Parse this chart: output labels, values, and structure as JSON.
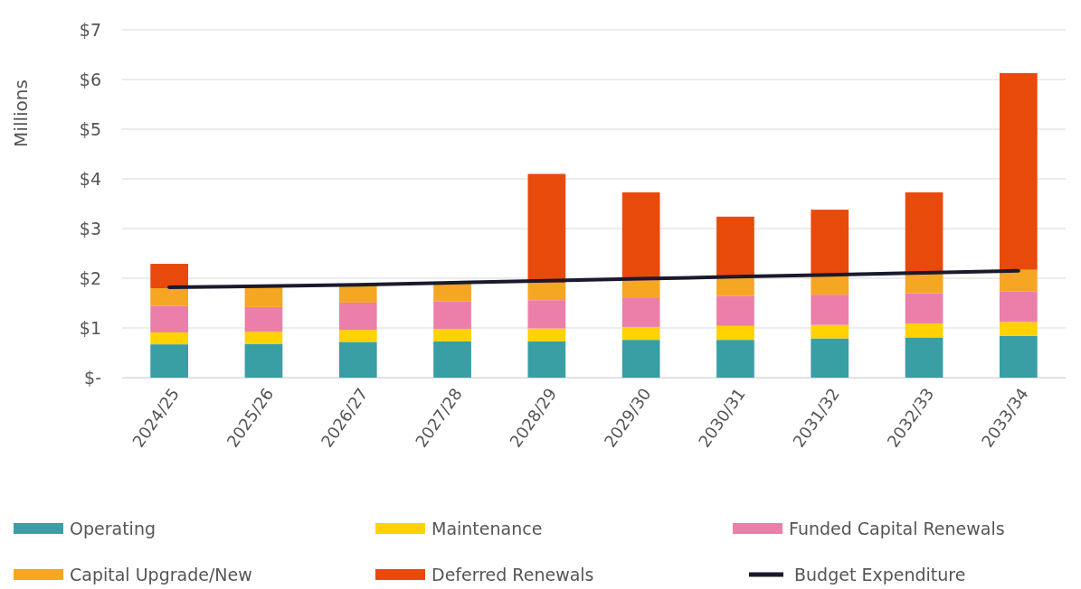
{
  "chart_data": {
    "type": "bar",
    "stacked": true,
    "ylabel": "Millions",
    "categories": [
      "2024/25",
      "2025/26",
      "2026/27",
      "2027/28",
      "2028/29",
      "2029/30",
      "2030/31",
      "2031/32",
      "2032/33",
      "2033/34"
    ],
    "ylim": [
      0,
      7
    ],
    "yticks": [
      {
        "value": 0,
        "label": "$-"
      },
      {
        "value": 1,
        "label": "$1"
      },
      {
        "value": 2,
        "label": "$2"
      },
      {
        "value": 3,
        "label": "$3"
      },
      {
        "value": 4,
        "label": "$4"
      },
      {
        "value": 5,
        "label": "$5"
      },
      {
        "value": 6,
        "label": "$6"
      },
      {
        "value": 7,
        "label": "$7"
      }
    ],
    "grid": "y",
    "legend": "bottom",
    "marker": "none",
    "line_style": "solid",
    "series": [
      {
        "name": "Operating",
        "color": "#3a9ea5",
        "values": [
          0.67,
          0.68,
          0.72,
          0.73,
          0.73,
          0.76,
          0.76,
          0.79,
          0.81,
          0.84
        ]
      },
      {
        "name": "Maintenance",
        "color": "#ffd200",
        "values": [
          0.24,
          0.24,
          0.24,
          0.25,
          0.26,
          0.26,
          0.28,
          0.27,
          0.28,
          0.28
        ]
      },
      {
        "name": "Funded Capital Renewals",
        "color": "#ec7fa9",
        "values": [
          0.53,
          0.5,
          0.55,
          0.56,
          0.57,
          0.58,
          0.6,
          0.61,
          0.61,
          0.61
        ]
      },
      {
        "name": "Capital Upgrade/New",
        "color": "#f5a623",
        "values": [
          0.36,
          0.4,
          0.34,
          0.35,
          0.35,
          0.36,
          0.37,
          0.39,
          0.4,
          0.44
        ]
      },
      {
        "name": "Deferred Renewals",
        "color": "#e84a0c",
        "values": [
          0.49,
          null,
          null,
          null,
          2.19,
          1.77,
          1.23,
          1.32,
          1.63,
          3.96
        ]
      },
      {
        "name": "Budget Expenditure",
        "type": "line",
        "color": "#1a1a2e",
        "values": [
          1.82,
          1.84,
          1.87,
          1.91,
          1.95,
          1.99,
          2.03,
          2.07,
          2.11,
          2.15
        ]
      }
    ]
  }
}
